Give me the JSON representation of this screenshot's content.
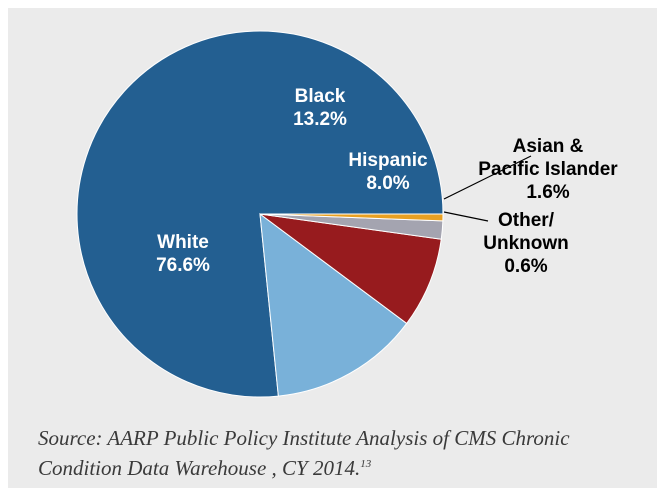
{
  "chart_data": {
    "type": "pie",
    "title": "",
    "slices": [
      {
        "label_lines": [
          "White",
          "76.6%"
        ],
        "category": "White",
        "value": 76.6,
        "color": "#235f91"
      },
      {
        "label_lines": [
          "Black",
          "13.2%"
        ],
        "category": "Black",
        "value": 13.2,
        "color": "#79b1d9"
      },
      {
        "label_lines": [
          "Hispanic",
          "8.0%"
        ],
        "category": "Hispanic",
        "value": 8.0,
        "color": "#971b1e"
      },
      {
        "label_lines": [
          "Asian &",
          "Pacific Islander",
          "1.6%"
        ],
        "category": "Asian & Pacific Islander",
        "value": 1.6,
        "color": "#a4a4b0"
      },
      {
        "label_lines": [
          "Other/",
          "Unknown",
          "0.6%"
        ],
        "category": "Other/Unknown",
        "value": 0.6,
        "color": "#e8a021"
      }
    ],
    "start": "3 o'clock",
    "direction": "counterclockwise",
    "label_colors": {
      "inside": "#ffffff",
      "outside": "#000000"
    },
    "callout_lines": true,
    "outline_color": "#ffffff"
  },
  "source": {
    "text": "Source: AARP Public Policy Institute Analysis of CMS Chronic Condition Data Warehouse , CY 2014.",
    "footnote": "13"
  }
}
